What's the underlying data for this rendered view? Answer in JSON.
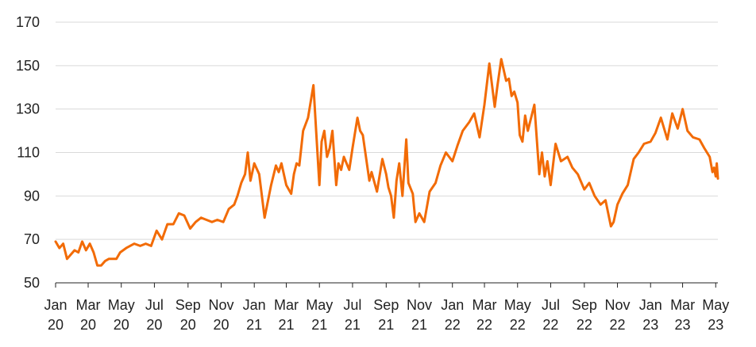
{
  "colors": {
    "line": "#F26B06",
    "grid": "#D9D9D9",
    "axis": "#222222",
    "text": "#222222"
  },
  "chart_data": {
    "type": "line",
    "title": "",
    "xlabel": "",
    "ylabel": "",
    "ylim": [
      50,
      170
    ],
    "yticks": [
      50,
      70,
      90,
      110,
      130,
      150,
      170
    ],
    "grid": "horizontal",
    "xlim": [
      "2020-01-01",
      "2023-05-05"
    ],
    "xticks": [
      {
        "date": "2020-01-01",
        "month": "Jan",
        "year": "20"
      },
      {
        "date": "2020-03-01",
        "month": "Mar",
        "year": "20"
      },
      {
        "date": "2020-05-01",
        "month": "May",
        "year": "20"
      },
      {
        "date": "2020-07-01",
        "month": "Jul",
        "year": "20"
      },
      {
        "date": "2020-09-01",
        "month": "Sep",
        "year": "20"
      },
      {
        "date": "2020-11-01",
        "month": "Nov",
        "year": "20"
      },
      {
        "date": "2021-01-01",
        "month": "Jan",
        "year": "21"
      },
      {
        "date": "2021-03-01",
        "month": "Mar",
        "year": "21"
      },
      {
        "date": "2021-05-01",
        "month": "May",
        "year": "21"
      },
      {
        "date": "2021-07-01",
        "month": "Jul",
        "year": "21"
      },
      {
        "date": "2021-09-01",
        "month": "Sep",
        "year": "21"
      },
      {
        "date": "2021-11-01",
        "month": "Nov",
        "year": "21"
      },
      {
        "date": "2022-01-01",
        "month": "Jan",
        "year": "22"
      },
      {
        "date": "2022-03-01",
        "month": "Mar",
        "year": "22"
      },
      {
        "date": "2022-05-01",
        "month": "May",
        "year": "22"
      },
      {
        "date": "2022-07-01",
        "month": "Jul",
        "year": "22"
      },
      {
        "date": "2022-09-01",
        "month": "Sep",
        "year": "22"
      },
      {
        "date": "2022-11-01",
        "month": "Nov",
        "year": "22"
      },
      {
        "date": "2023-01-01",
        "month": "Jan",
        "year": "23"
      },
      {
        "date": "2023-03-01",
        "month": "Mar",
        "year": "23"
      },
      {
        "date": "2023-05-01",
        "month": "May",
        "year": "23"
      }
    ],
    "series": [
      {
        "x": [
          "2020-01-01",
          "2020-01-08",
          "2020-01-15",
          "2020-01-22",
          "2020-01-29",
          "2020-02-05",
          "2020-02-12",
          "2020-02-19",
          "2020-02-26",
          "2020-03-04",
          "2020-03-11",
          "2020-03-18",
          "2020-03-25",
          "2020-04-01",
          "2020-04-08",
          "2020-04-15",
          "2020-04-22",
          "2020-04-29",
          "2020-05-10",
          "2020-05-25",
          "2020-06-05",
          "2020-06-15",
          "2020-06-25",
          "2020-07-05",
          "2020-07-15",
          "2020-07-25",
          "2020-08-05",
          "2020-08-15",
          "2020-08-25",
          "2020-09-05",
          "2020-09-15",
          "2020-09-25",
          "2020-10-05",
          "2020-10-15",
          "2020-10-25",
          "2020-11-05",
          "2020-11-15",
          "2020-11-25",
          "2020-12-01",
          "2020-12-08",
          "2020-12-15",
          "2020-12-20",
          "2020-12-25",
          "2021-01-01",
          "2021-01-10",
          "2021-01-20",
          "2021-02-01",
          "2021-02-10",
          "2021-02-15",
          "2021-02-20",
          "2021-03-01",
          "2021-03-10",
          "2021-03-15",
          "2021-03-20",
          "2021-03-25",
          "2021-04-01",
          "2021-04-10",
          "2021-04-20",
          "2021-04-25",
          "2021-05-01",
          "2021-05-05",
          "2021-05-10",
          "2021-05-15",
          "2021-05-20",
          "2021-05-25",
          "2021-06-01",
          "2021-06-05",
          "2021-06-10",
          "2021-06-15",
          "2021-06-25",
          "2021-07-01",
          "2021-07-10",
          "2021-07-15",
          "2021-07-20",
          "2021-08-01",
          "2021-08-05",
          "2021-08-15",
          "2021-08-25",
          "2021-09-01",
          "2021-09-05",
          "2021-09-10",
          "2021-09-15",
          "2021-09-20",
          "2021-09-25",
          "2021-10-01",
          "2021-10-08",
          "2021-10-12",
          "2021-10-20",
          "2021-10-25",
          "2021-11-01",
          "2021-11-10",
          "2021-11-20",
          "2021-12-01",
          "2021-12-10",
          "2021-12-20",
          "2022-01-01",
          "2022-01-10",
          "2022-01-20",
          "2022-02-01",
          "2022-02-10",
          "2022-02-20",
          "2022-03-01",
          "2022-03-10",
          "2022-03-20",
          "2022-03-25",
          "2022-04-01",
          "2022-04-10",
          "2022-04-15",
          "2022-04-20",
          "2022-04-25",
          "2022-05-01",
          "2022-05-05",
          "2022-05-10",
          "2022-05-15",
          "2022-05-20",
          "2022-06-01",
          "2022-06-10",
          "2022-06-15",
          "2022-06-20",
          "2022-06-25",
          "2022-07-01",
          "2022-07-10",
          "2022-07-20",
          "2022-08-01",
          "2022-08-10",
          "2022-08-20",
          "2022-09-01",
          "2022-09-10",
          "2022-09-20",
          "2022-10-01",
          "2022-10-10",
          "2022-10-20",
          "2022-10-25",
          "2022-11-01",
          "2022-11-10",
          "2022-11-20",
          "2022-12-01",
          "2022-12-10",
          "2022-12-20",
          "2023-01-01",
          "2023-01-10",
          "2023-01-20",
          "2023-02-01",
          "2023-02-10",
          "2023-02-20",
          "2023-03-01",
          "2023-03-10",
          "2023-03-20",
          "2023-04-01",
          "2023-04-10",
          "2023-04-15",
          "2023-04-20",
          "2023-04-25",
          "2023-04-28",
          "2023-05-01",
          "2023-05-03",
          "2023-05-05"
        ],
        "values": [
          69,
          66,
          68,
          61,
          63,
          65,
          64,
          69,
          65,
          68,
          64,
          58,
          58,
          60,
          61,
          61,
          61,
          64,
          66,
          68,
          67,
          68,
          67,
          74,
          70,
          77,
          77,
          82,
          81,
          75,
          78,
          80,
          79,
          78,
          79,
          78,
          84,
          86,
          90,
          96,
          100,
          110,
          97,
          105,
          100,
          80,
          95,
          104,
          101,
          105,
          95,
          91,
          100,
          105,
          104,
          120,
          126,
          141,
          120,
          95,
          115,
          120,
          108,
          112,
          120,
          95,
          105,
          102,
          108,
          102,
          112,
          126,
          120,
          118,
          97,
          101,
          92,
          107,
          100,
          94,
          90,
          80,
          97,
          105,
          90,
          116,
          96,
          91,
          78,
          82,
          78,
          92,
          96,
          104,
          110,
          106,
          113,
          120,
          124,
          128,
          117,
          132,
          151,
          131,
          141,
          153,
          143,
          144,
          136,
          138,
          133,
          118,
          115,
          127,
          120,
          132,
          100,
          110,
          99,
          106,
          95,
          114,
          106,
          108,
          103,
          100,
          93,
          96,
          90,
          86,
          88,
          76,
          78,
          86,
          91,
          95,
          107,
          110,
          114,
          115,
          119,
          126,
          116,
          128,
          121,
          130,
          120,
          117,
          116,
          112,
          110,
          108,
          101,
          103,
          99,
          105,
          98
        ]
      }
    ]
  }
}
